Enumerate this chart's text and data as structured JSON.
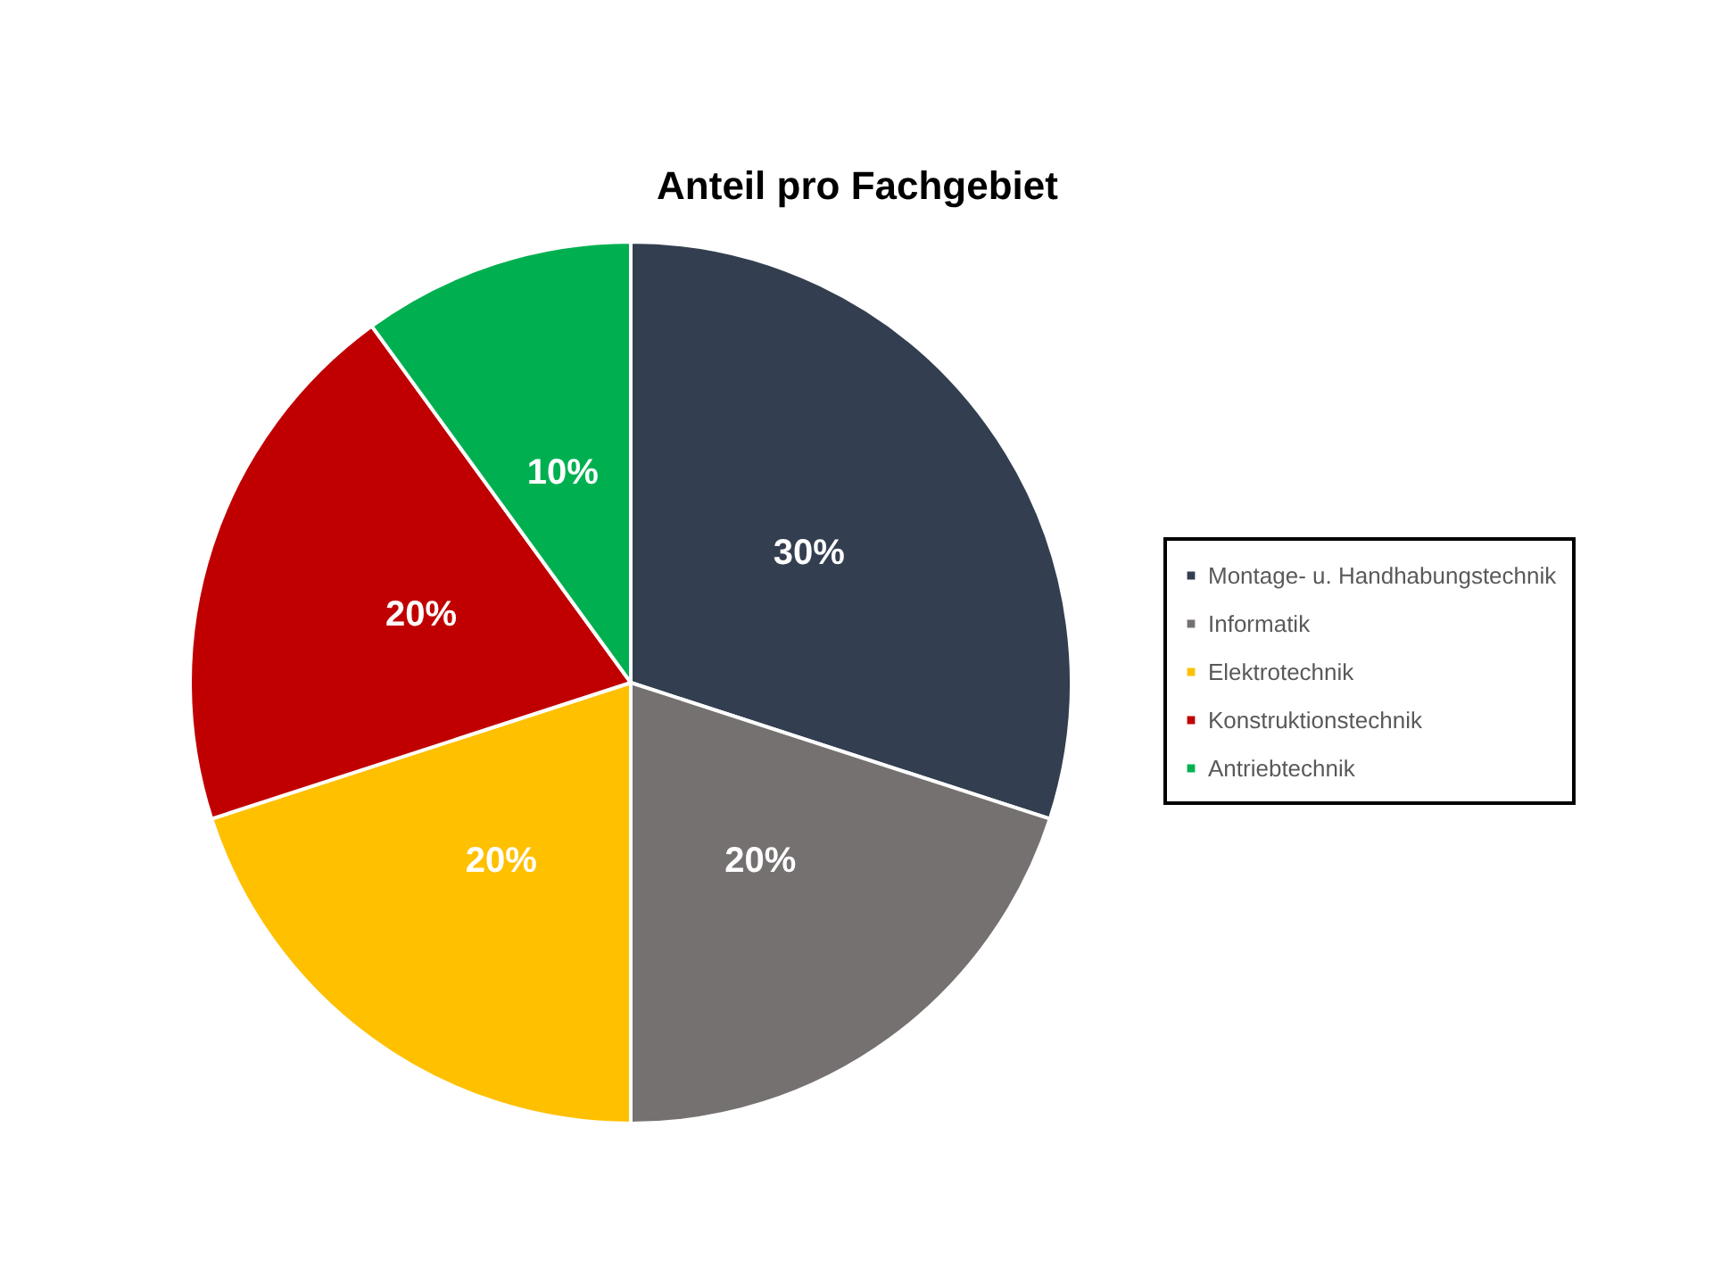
{
  "chart_data": {
    "type": "pie",
    "title": "Anteil pro Fachgebiet",
    "categories": [
      "Montage- u. Handhabungstechnik",
      "Informatik",
      "Elektrotechnik",
      "Konstruktionstechnik",
      "Antriebtechnik"
    ],
    "values": [
      30,
      20,
      20,
      20,
      10
    ],
    "colors": [
      "#333f50",
      "#767171",
      "#ffc000",
      "#c00000",
      "#00b050"
    ],
    "value_labels": [
      "30%",
      "20%",
      "20%",
      "20%",
      "10%"
    ],
    "legend": "right"
  }
}
